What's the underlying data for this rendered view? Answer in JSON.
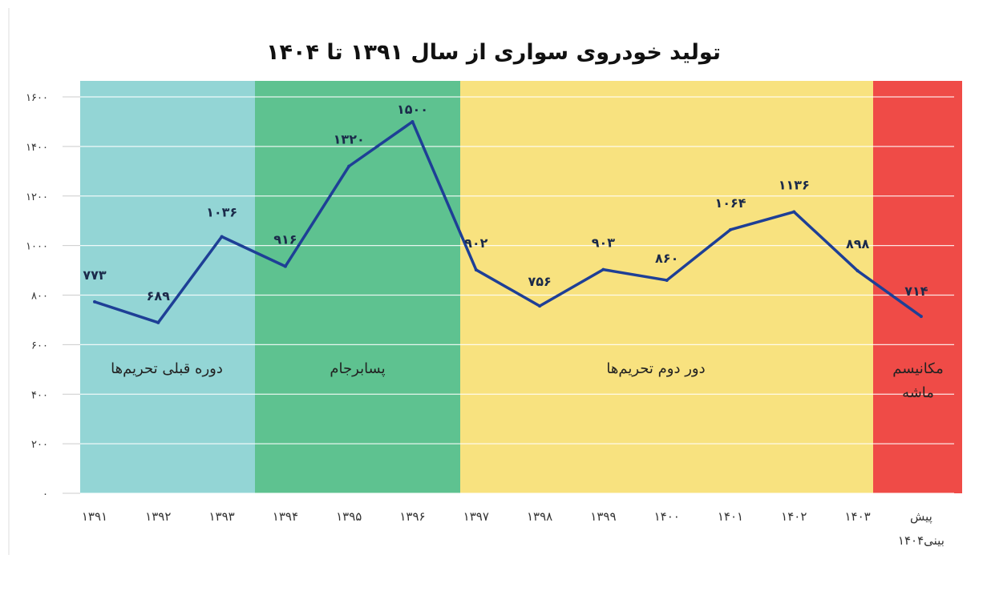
{
  "chart_data": {
    "type": "line",
    "title": "تولید خودروی سواری از سال ۱۳۹۱ تا ۱۴۰۴",
    "xlabel": "",
    "ylabel": "",
    "ylim": [
      0,
      1600
    ],
    "yticks": [
      0,
      200,
      400,
      600,
      800,
      1000,
      1200,
      1400,
      1600
    ],
    "ytick_labels": [
      "۰",
      "۲۰۰",
      "۴۰۰",
      "۶۰۰",
      "۸۰۰",
      "۱۰۰۰",
      "۱۲۰۰",
      "۱۴۰۰",
      "۱۶۰۰"
    ],
    "categories": [
      "۱۳۹۱",
      "۱۳۹۲",
      "۱۳۹۳",
      "۱۳۹۴",
      "۱۳۹۵",
      "۱۳۹۶",
      "۱۳۹۷",
      "۱۳۹۸",
      "۱۳۹۹",
      "۱۴۰۰",
      "۱۴۰۱",
      "۱۴۰۲",
      "۱۴۰۳",
      "پیش بینی۱۴۰۴"
    ],
    "series": [
      {
        "name": "تولید خودروی سواری",
        "values": [
          773,
          689,
          1036,
          916,
          1320,
          1500,
          902,
          756,
          903,
          860,
          1064,
          1136,
          898,
          714
        ],
        "labels": [
          "۷۷۳",
          "۶۸۹",
          "۱۰۳۶",
          "۹۱۶",
          "۱۳۲۰",
          "۱۵۰۰",
          "۹۰۲",
          "۷۵۶",
          "۹۰۳",
          "۸۶۰",
          "۱۰۶۴",
          "۱۱۳۶",
          "۸۹۸",
          "۷۱۴"
        ],
        "color": "#1e3f96"
      }
    ],
    "bands": [
      {
        "label": "دوره قبلی تحریم‌ها",
        "from": 0,
        "to": 2.5,
        "color": "#93d5d5"
      },
      {
        "label": "پسابرجام",
        "from": 2.5,
        "to": 5.75,
        "color": "#5ec290"
      },
      {
        "label": "دور دوم تحریم‌ها",
        "from": 5.75,
        "to": 12.3,
        "color": "#f8e27f"
      },
      {
        "label": "مکانیسم ماشه",
        "from": 12.3,
        "to": 13.6,
        "color": "#ef4b47"
      }
    ],
    "grid": true,
    "legend": "none"
  }
}
